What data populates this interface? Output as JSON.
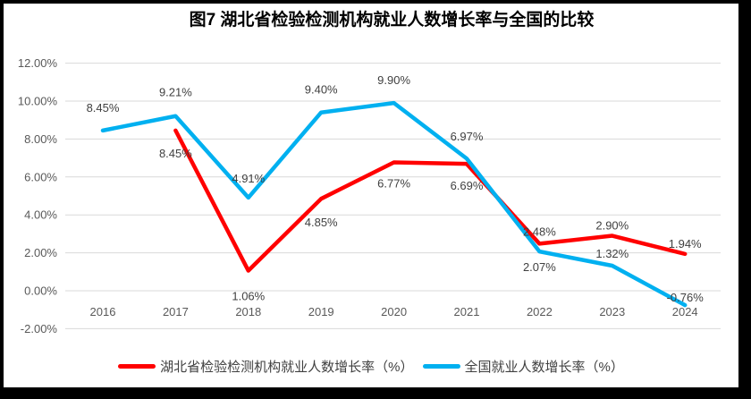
{
  "title": "图7 湖北省检验检测机构就业人数增长率与全国的比较",
  "colors": {
    "hubei_series": "#FF0000",
    "national_series": "#00B0F0",
    "grid": "#D9D9D9",
    "axis_text": "#595959",
    "label_text": "#404040",
    "frame": "#000000",
    "background": "#FFFFFF"
  },
  "chart_data": {
    "type": "line",
    "title": "图7 湖北省检验检测机构就业人数增长率与全国的比较",
    "categories": [
      "2016",
      "2017",
      "2018",
      "2019",
      "2020",
      "2021",
      "2022",
      "2023",
      "2024"
    ],
    "series": [
      {
        "name": "湖北省检验检测机构就业人数增长率（%）",
        "color": "#FF0000",
        "values": [
          null,
          8.45,
          1.06,
          4.85,
          6.77,
          6.69,
          2.48,
          2.9,
          1.94
        ],
        "labels": [
          "",
          "8.45%",
          "1.06%",
          "4.85%",
          "6.77%",
          "6.69%",
          "2.48%",
          "2.90%",
          "1.94%"
        ],
        "label_positions": [
          "",
          "below",
          "below",
          "below",
          "below",
          "below",
          "above",
          "above",
          "above"
        ],
        "label_dy": [
          0,
          30,
          33,
          31,
          28,
          29,
          -9,
          -7,
          -7
        ]
      },
      {
        "name": "全国就业人数增长率（%）",
        "color": "#00B0F0",
        "values": [
          8.45,
          9.21,
          4.91,
          9.4,
          9.9,
          6.97,
          2.07,
          1.32,
          -0.76
        ],
        "labels": [
          "8.45%",
          "9.21%",
          "4.91%",
          "9.40%",
          "9.90%",
          "6.97%",
          "2.07%",
          "1.32%",
          "-0.76%"
        ],
        "label_positions": [
          "above",
          "above",
          "above",
          "above",
          "above",
          "above",
          "below",
          "above",
          "above"
        ],
        "label_dy": [
          -21,
          -22,
          -17,
          -21,
          -21,
          -20,
          22,
          -9,
          -4
        ]
      }
    ],
    "y_axis": {
      "ticks": [
        12,
        10,
        8,
        6,
        4,
        2,
        0,
        -2
      ],
      "tick_labels": [
        "12.00%",
        "10.00%",
        "8.00%",
        "6.00%",
        "4.00%",
        "2.00%",
        "0.00%",
        "-2.00%"
      ],
      "min": -2,
      "max": 12
    },
    "xlabel": "",
    "ylabel": "",
    "grid": true,
    "legend_position": "bottom"
  }
}
